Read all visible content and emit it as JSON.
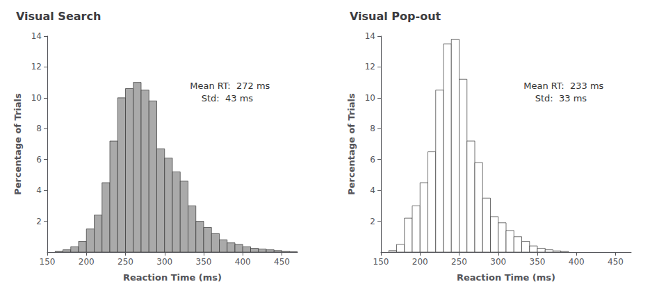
{
  "chart_data": [
    {
      "type": "histogram",
      "title": "Visual Search",
      "xlabel": "Reaction Time (ms)",
      "ylabel": "Percentage of Trials",
      "bins": [
        160,
        170,
        180,
        190,
        200,
        210,
        220,
        230,
        240,
        250,
        260,
        270,
        280,
        290,
        300,
        310,
        320,
        330,
        340,
        350,
        360,
        370,
        380,
        390,
        400,
        410,
        420,
        430,
        440,
        450,
        460,
        470
      ],
      "values": [
        0.05,
        0.15,
        0.35,
        0.7,
        1.5,
        2.4,
        4.5,
        7.2,
        10.0,
        10.6,
        11.0,
        10.5,
        9.8,
        6.7,
        6.1,
        5.2,
        4.6,
        3.0,
        2.0,
        1.6,
        1.2,
        0.8,
        0.6,
        0.5,
        0.35,
        0.25,
        0.2,
        0.15,
        0.1,
        0.05,
        0.02
      ],
      "color": "#aaaaaa",
      "xlim": [
        150,
        470
      ],
      "ylim": [
        0,
        14
      ],
      "xticks": [
        150,
        200,
        250,
        300,
        350,
        400,
        450
      ],
      "yticks": [
        2,
        4,
        6,
        8,
        10,
        12,
        14
      ],
      "annotation": "Mean RT:  272 ms\n    Std:  43 ms",
      "grid": false
    },
    {
      "type": "histogram",
      "title": "Visual Pop-out",
      "xlabel": "Reaction Time (ms)",
      "ylabel": "Percentage of Trials",
      "bins": [
        160,
        170,
        180,
        190,
        200,
        210,
        220,
        230,
        240,
        250,
        260,
        270,
        280,
        290,
        300,
        310,
        320,
        330,
        340,
        350,
        360,
        370,
        380,
        390
      ],
      "values": [
        0.1,
        0.5,
        2.2,
        3.0,
        4.5,
        6.5,
        10.5,
        13.5,
        13.8,
        11.2,
        7.2,
        5.8,
        3.5,
        2.3,
        1.9,
        1.4,
        1.0,
        0.7,
        0.4,
        0.25,
        0.15,
        0.08,
        0.04
      ],
      "color": "#ffffff",
      "xlim": [
        150,
        470
      ],
      "ylim": [
        0,
        14
      ],
      "xticks": [
        150,
        200,
        250,
        300,
        350,
        400,
        450
      ],
      "yticks": [
        2,
        4,
        6,
        8,
        10,
        12,
        14
      ],
      "annotation": "Mean RT:  233 ms\n    Std:  33 ms",
      "grid": false
    }
  ]
}
